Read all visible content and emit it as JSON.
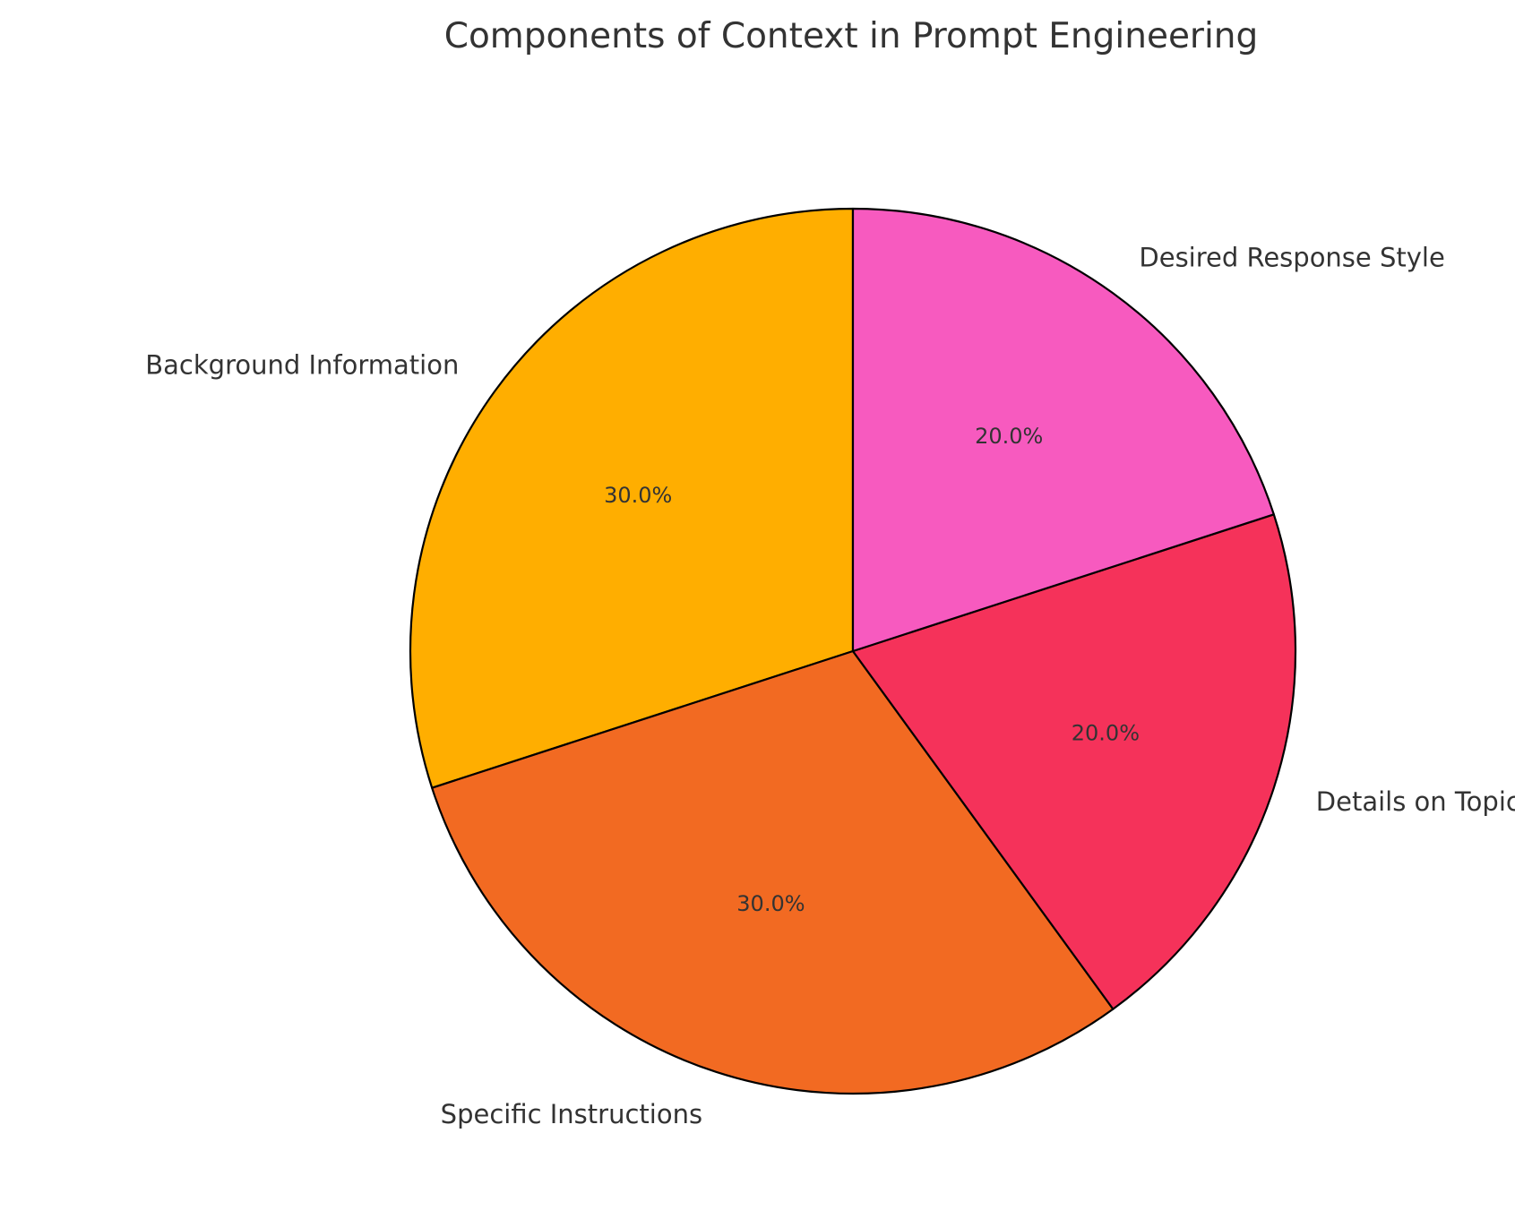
{
  "chart_data": {
    "type": "pie",
    "title": "Components of Context in Prompt Engineering",
    "start_angle_deg": 90,
    "direction": "counterclockwise",
    "slices": [
      {
        "label": "Background Information",
        "value": 30.0,
        "pct_label": "30.0%",
        "color": "#FFAE00"
      },
      {
        "label": "Specific Instructions",
        "value": 30.0,
        "pct_label": "30.0%",
        "color": "#F26A22"
      },
      {
        "label": "Details on Topic",
        "value": 20.0,
        "pct_label": "20.0%",
        "color": "#F5325A"
      },
      {
        "label": "Desired Response Style",
        "value": 20.0,
        "pct_label": "20.0%",
        "color": "#F75ABF"
      }
    ],
    "legend": "none",
    "grid": false
  }
}
